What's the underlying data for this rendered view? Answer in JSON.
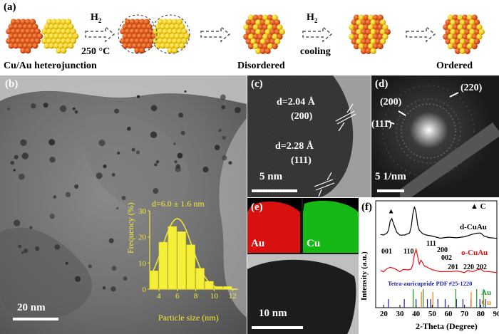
{
  "panel_a": {
    "label": "(a)",
    "step1_gas": "H",
    "step1_gas_sub": "2",
    "step1_temp": "250 °C",
    "step2_gas": "H",
    "step2_gas_sub": "2",
    "step2_cond": "cooling",
    "caption_left": "Cu/Au heterojunction",
    "caption_mid": "Disordered",
    "caption_right": "Ordered",
    "colors": {
      "cu": "#e0581c",
      "au": "#f4d11e",
      "arrow": "#555555"
    }
  },
  "panel_b": {
    "label": "(b)",
    "scale_bar": "20 nm",
    "inset": {
      "title": "d=6.0 ± 1.6 nm",
      "xlabel": "Particle size (nm)",
      "ylabel": "Frequency (%)"
    }
  },
  "panel_c": {
    "label": "(c)",
    "d1": "d=2.04 Å",
    "d1_plane": "(200)",
    "d2": "d=2.28 Å",
    "d2_plane": "(111)",
    "scale_bar": "5 nm"
  },
  "panel_d": {
    "label": "(d)",
    "ring1": "(200)",
    "ring2": "(111)",
    "ring3": "(220)",
    "scale_bar": "5 1/nm"
  },
  "panel_e": {
    "label": "(e)",
    "map1": "Au",
    "map2": "Cu",
    "scale_bar": "10 nm",
    "colors": {
      "au_map": "#e01010",
      "cu_map": "#18c418"
    }
  },
  "panel_f": {
    "label": "(f)",
    "legend_marker": "▲ C",
    "trace1": "d-CuAu",
    "trace2": "o-CuAu",
    "reference": "Tetra-auricupride PDF #25-1220",
    "ref_au": "Au",
    "ref_cu": "Cu",
    "peaks": [
      "001",
      "110",
      "111",
      "200",
      "002",
      "201",
      "220",
      "202"
    ],
    "colors": {
      "d_trace": "#000000",
      "o_trace": "#e81010",
      "ref": "#1a1ab0",
      "au": "#2a9a2a",
      "cu": "#e08a1a"
    }
  },
  "chart_data": [
    {
      "type": "bar",
      "title": "d=6.0 ± 1.6 nm",
      "xlabel": "Particle size (nm)",
      "ylabel": "Frequency (%)",
      "x": [
        3.5,
        4.5,
        5.5,
        6.5,
        7.5,
        8.5,
        9.5,
        10.5,
        11.5
      ],
      "values": [
        7,
        18,
        24,
        22,
        17,
        8,
        3,
        1,
        1
      ],
      "xticks": [
        "4",
        "6",
        "8",
        "10",
        "12"
      ],
      "yticks": [
        "0",
        "10",
        "20",
        "30"
      ],
      "xlim": [
        3,
        12.6
      ],
      "ylim": [
        0,
        30
      ]
    },
    {
      "type": "line",
      "xlabel": "2-Theta (Degree)",
      "ylabel": "Intensity (a.u.)",
      "xticks": [
        "20",
        "30",
        "40",
        "50",
        "60",
        "70",
        "80",
        "90"
      ],
      "xlim": [
        15,
        90
      ],
      "series": [
        {
          "name": "d-CuAu",
          "x": [
            18,
            20,
            22,
            23,
            24,
            25,
            26,
            28,
            30,
            33,
            36,
            37,
            38,
            39,
            40,
            41,
            42,
            44,
            46,
            50,
            55,
            60,
            65,
            70,
            75,
            78,
            80,
            82,
            85,
            90
          ],
          "y": [
            0.72,
            0.72,
            0.73,
            0.77,
            0.85,
            0.88,
            0.83,
            0.74,
            0.72,
            0.71,
            0.74,
            0.8,
            0.92,
            1.0,
            0.93,
            0.82,
            0.76,
            0.73,
            0.72,
            0.7,
            0.69,
            0.69,
            0.69,
            0.7,
            0.72,
            0.74,
            0.73,
            0.71,
            0.69,
            0.68
          ]
        },
        {
          "name": "o-CuAu",
          "x": [
            18,
            20,
            22,
            24,
            26,
            28,
            30,
            32,
            33,
            35,
            37,
            38,
            39,
            40,
            41,
            42,
            43,
            44,
            45,
            46,
            47,
            48,
            50,
            55,
            60,
            62,
            65,
            68,
            70,
            72,
            75,
            78,
            80,
            82,
            85,
            90
          ],
          "y": [
            0.36,
            0.36,
            0.38,
            0.4,
            0.39,
            0.37,
            0.36,
            0.37,
            0.38,
            0.37,
            0.38,
            0.43,
            0.52,
            0.58,
            0.5,
            0.43,
            0.47,
            0.44,
            0.42,
            0.4,
            0.4,
            0.39,
            0.37,
            0.36,
            0.35,
            0.36,
            0.36,
            0.35,
            0.35,
            0.36,
            0.36,
            0.37,
            0.38,
            0.36,
            0.35,
            0.35
          ]
        }
      ],
      "reference_lines": {
        "tetra_auricupride": [
          22.9,
          32.7,
          40.0,
          47.0,
          49.0,
          53.5,
          58.0,
          65.0,
          69.0,
          74.0,
          79.5,
          83.0
        ],
        "au": [
          38.2,
          44.4,
          64.6,
          77.5,
          81.7
        ],
        "cu": [
          43.3,
          50.4,
          74.1
        ]
      }
    }
  ]
}
